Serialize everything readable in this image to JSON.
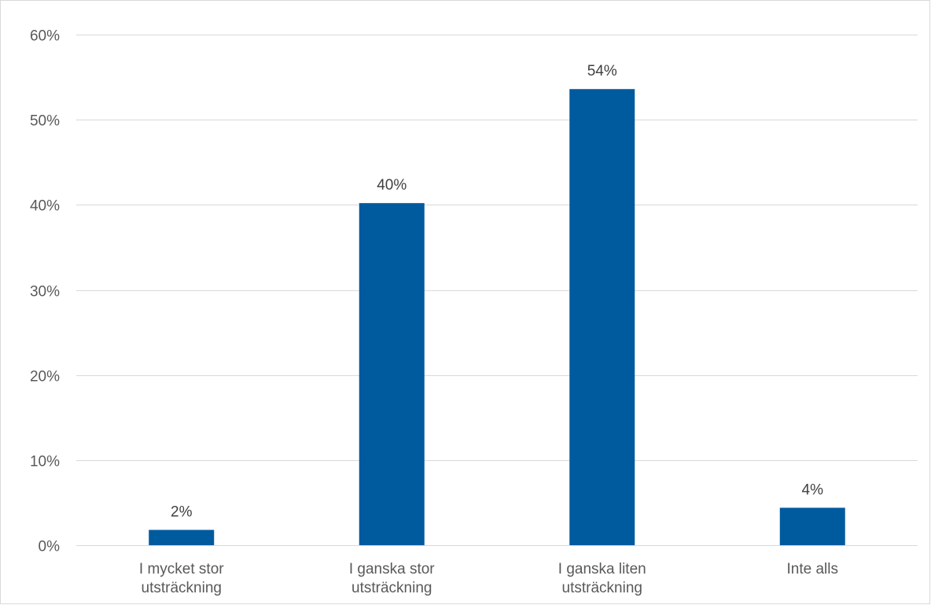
{
  "chart_data": {
    "type": "bar",
    "title": "",
    "xlabel": "",
    "ylabel": "",
    "categories": [
      [
        "I mycket stor",
        "utsträckning"
      ],
      [
        "I ganska stor",
        "utsträckning"
      ],
      [
        "I ganska liten",
        "utsträckning"
      ],
      [
        "Inte alls"
      ]
    ],
    "values": [
      1.8,
      40.2,
      53.6,
      4.4
    ],
    "data_labels": [
      "2%",
      "40%",
      "54%",
      "4%"
    ],
    "ylim": [
      0,
      60
    ],
    "yticks": [
      0,
      10,
      20,
      30,
      40,
      50,
      60
    ],
    "ytick_labels": [
      "0%",
      "10%",
      "20%",
      "30%",
      "40%",
      "50%",
      "60%"
    ],
    "grid": true,
    "legend": "none",
    "bar_color": "#005A9E",
    "grid_color": "#D9D9D9"
  }
}
